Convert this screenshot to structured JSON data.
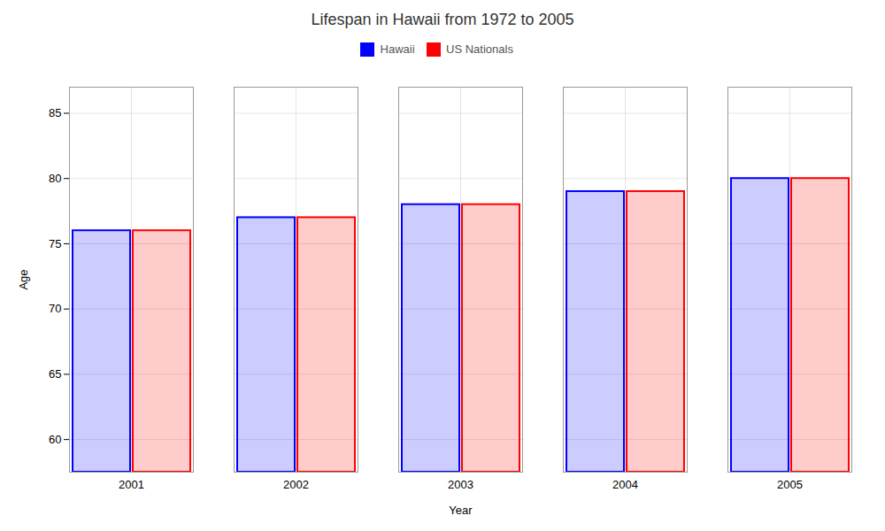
{
  "chart_data": {
    "type": "bar",
    "title": "Lifespan in Hawaii from 1972 to 2005",
    "xlabel": "Year",
    "ylabel": "Age",
    "categories": [
      2001,
      2002,
      2003,
      2004,
      2005
    ],
    "series": [
      {
        "name": "Hawaii",
        "color": "#0000ff",
        "values": [
          76,
          77,
          78,
          79,
          80
        ]
      },
      {
        "name": "US Nationals",
        "color": "#ff0000",
        "values": [
          76,
          77,
          78,
          79,
          80
        ]
      }
    ],
    "ylim": [
      57.5,
      87
    ],
    "yticks": [
      60,
      65,
      70,
      75,
      80,
      85
    ],
    "grid": true,
    "legend": "top"
  }
}
